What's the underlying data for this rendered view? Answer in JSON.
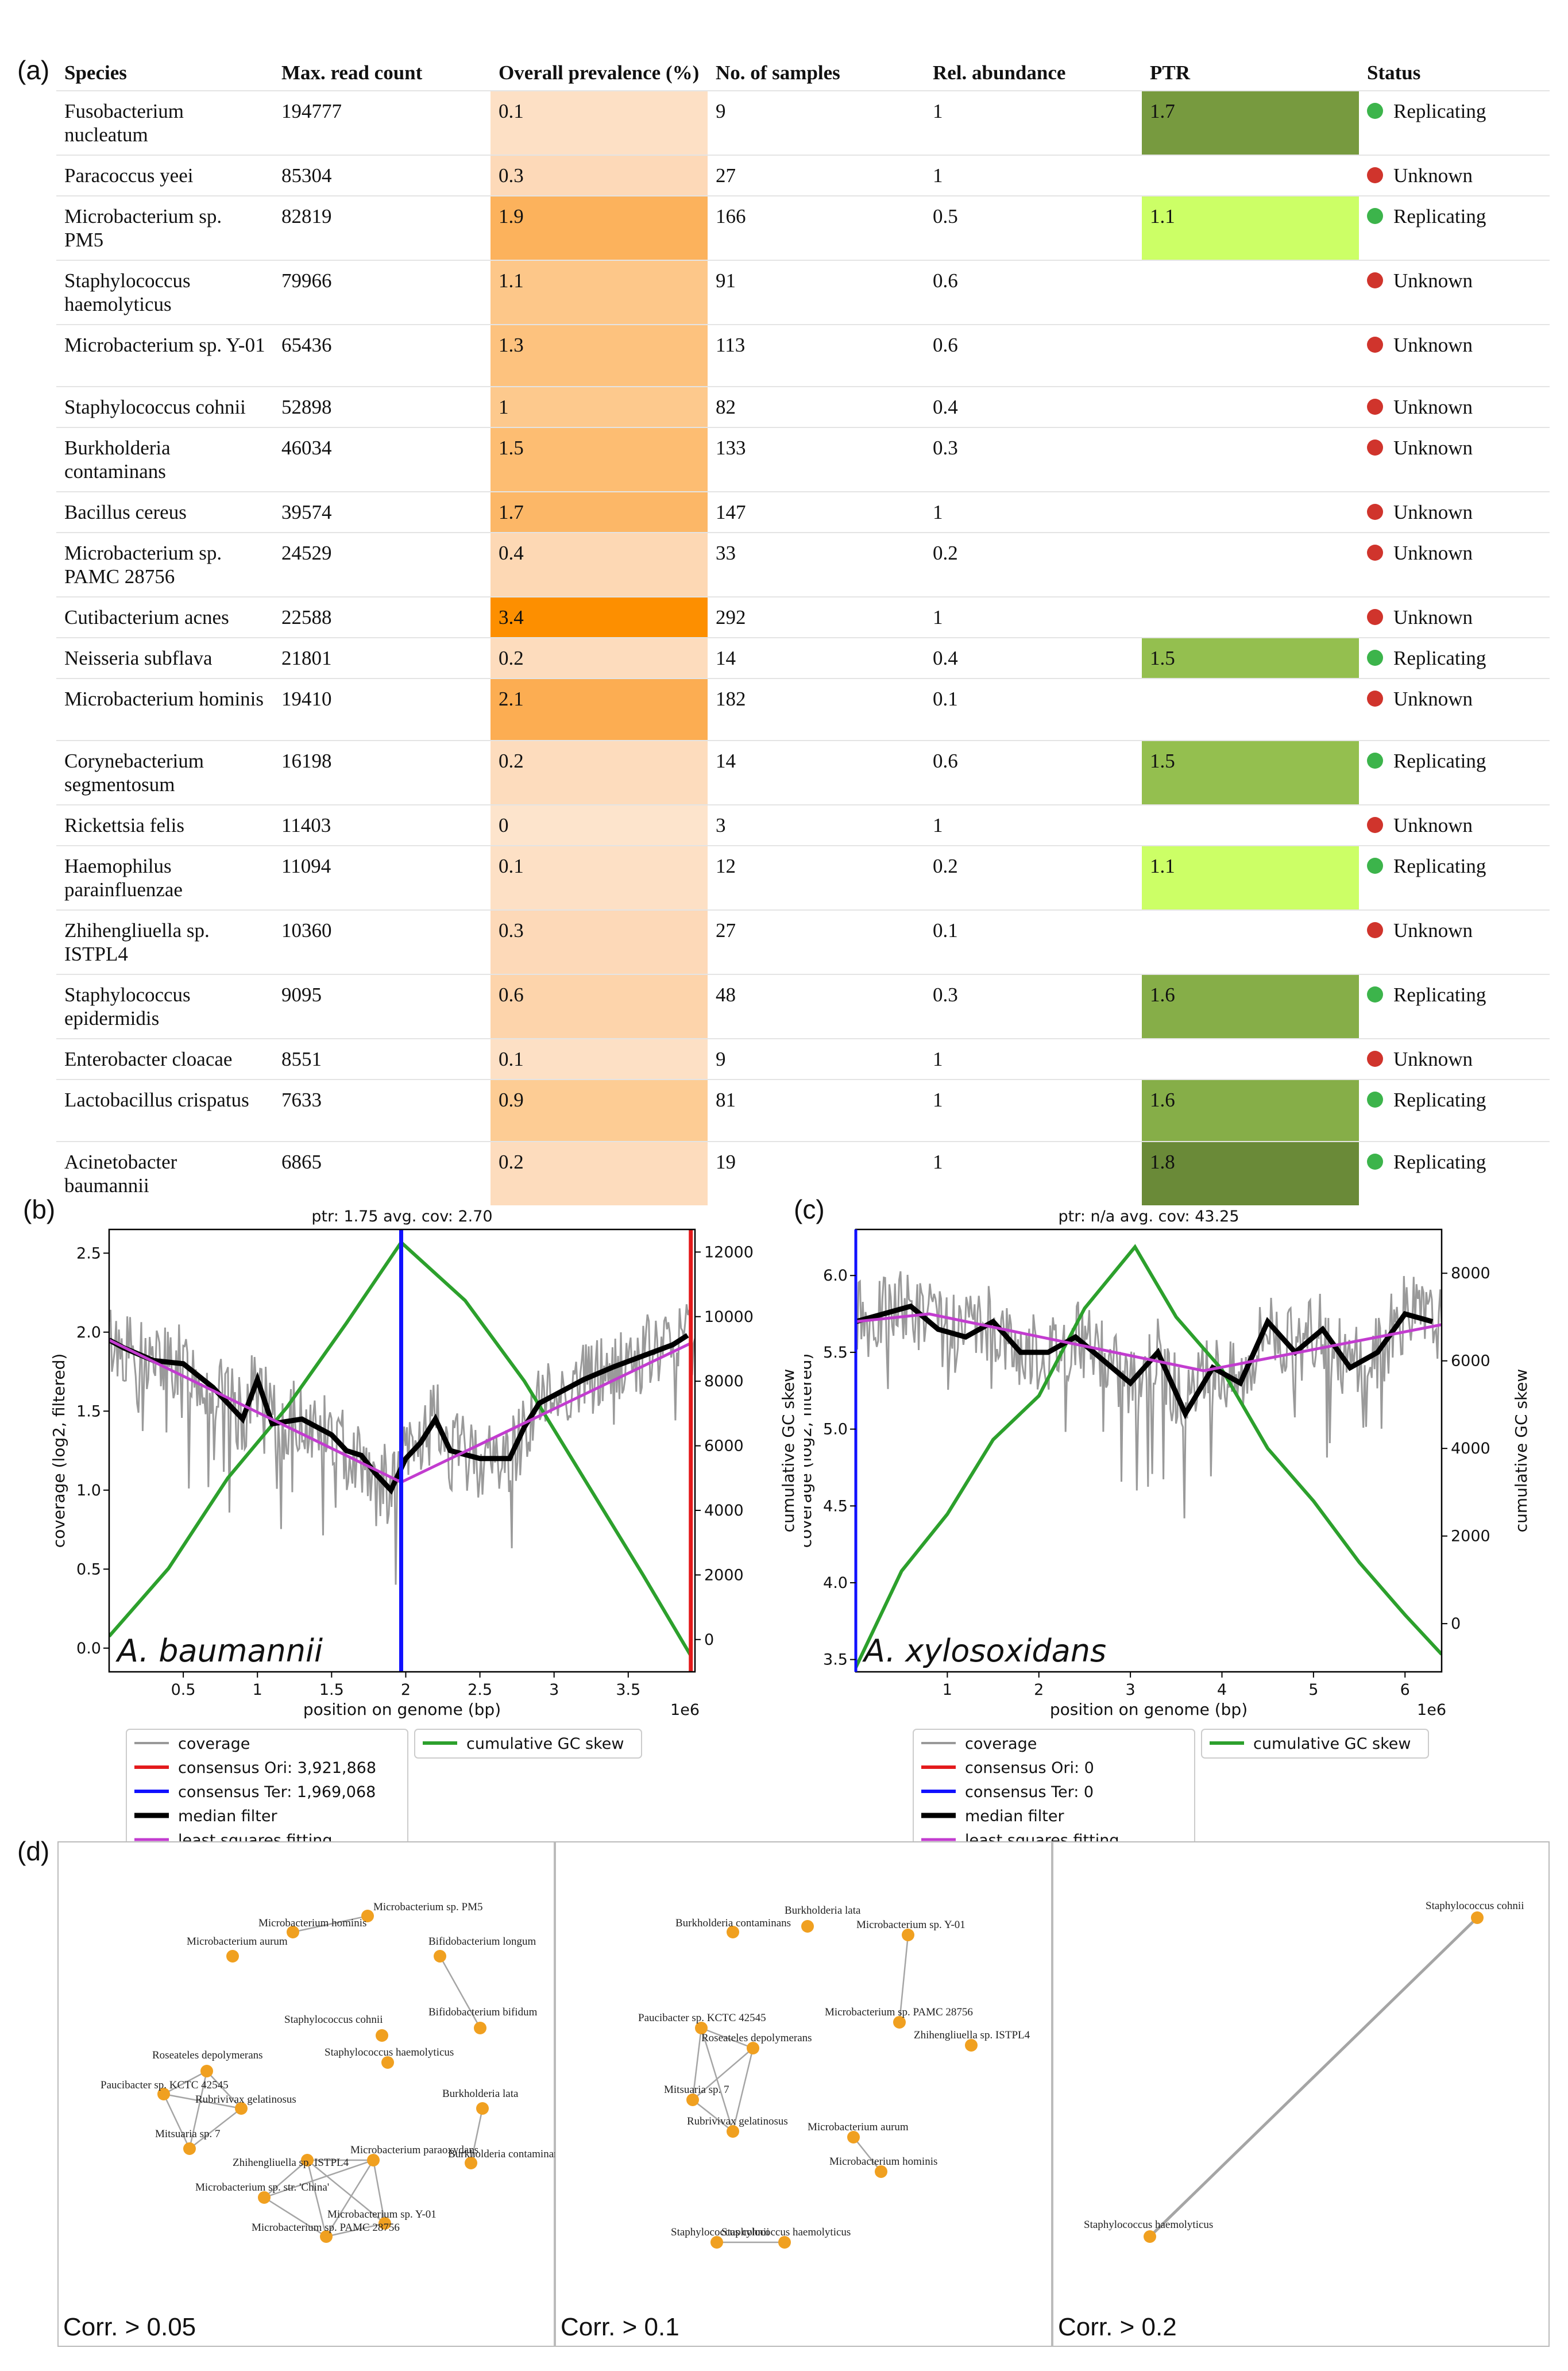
{
  "panel_labels": {
    "a": "(a)",
    "b": "(b)",
    "c": "(c)",
    "d": "(d)"
  },
  "table": {
    "headers": [
      "Species",
      "Max. read count",
      "Overall prevalence (%)",
      "No. of samples",
      "Rel. abundance",
      "PTR",
      "Status"
    ],
    "status_colors": {
      "Replicating": "#3cb44b",
      "Unknown": "#d0342c"
    },
    "rows": [
      {
        "species": "Fusobacterium nucleatum",
        "max_read_count": "194777",
        "prevalence": "0.1",
        "samples": "9",
        "rel_abundance": "1",
        "ptr": "1.7",
        "status": "Replicating",
        "prev_color": "#fde0c5",
        "ptr_color": "#779a3f"
      },
      {
        "species": "Paracoccus yeei",
        "max_read_count": "85304",
        "prevalence": "0.3",
        "samples": "27",
        "rel_abundance": "1",
        "ptr": "",
        "status": "Unknown",
        "prev_color": "#fdd9b8",
        "ptr_color": ""
      },
      {
        "species": "Microbacterium sp. PM5",
        "max_read_count": "82819",
        "prevalence": "1.9",
        "samples": "166",
        "rel_abundance": "0.5",
        "ptr": "1.1",
        "status": "Replicating",
        "prev_color": "#fcb25c",
        "ptr_color": "#ccff66"
      },
      {
        "species": "Staphylococcus haemolyticus",
        "max_read_count": "79966",
        "prevalence": "1.1",
        "samples": "91",
        "rel_abundance": "0.6",
        "ptr": "",
        "status": "Unknown",
        "prev_color": "#fdc789",
        "ptr_color": ""
      },
      {
        "species": "Microbacterium sp. Y-01",
        "max_read_count": "65436",
        "prevalence": "1.3",
        "samples": "113",
        "rel_abundance": "0.6",
        "ptr": "",
        "status": "Unknown",
        "prev_color": "#fdc27e",
        "ptr_color": ""
      },
      {
        "species": "Staphylococcus cohnii",
        "max_read_count": "52898",
        "prevalence": "1",
        "samples": "82",
        "rel_abundance": "0.4",
        "ptr": "",
        "status": "Unknown",
        "prev_color": "#fdc98d",
        "ptr_color": ""
      },
      {
        "species": "Burkholderia contaminans",
        "max_read_count": "46034",
        "prevalence": "1.5",
        "samples": "133",
        "rel_abundance": "0.3",
        "ptr": "",
        "status": "Unknown",
        "prev_color": "#fdbd72",
        "ptr_color": ""
      },
      {
        "species": "Bacillus cereus",
        "max_read_count": "39574",
        "prevalence": "1.7",
        "samples": "147",
        "rel_abundance": "1",
        "ptr": "",
        "status": "Unknown",
        "prev_color": "#fcb767",
        "ptr_color": ""
      },
      {
        "species": "Microbacterium sp. PAMC 28756",
        "max_read_count": "24529",
        "prevalence": "0.4",
        "samples": "33",
        "rel_abundance": "0.2",
        "ptr": "",
        "status": "Unknown",
        "prev_color": "#fdd8b4",
        "ptr_color": ""
      },
      {
        "species": "Cutibacterium acnes",
        "max_read_count": "22588",
        "prevalence": "3.4",
        "samples": "292",
        "rel_abundance": "1",
        "ptr": "",
        "status": "Unknown",
        "prev_color": "#fd8f00",
        "ptr_color": ""
      },
      {
        "species": "Neisseria subflava",
        "max_read_count": "21801",
        "prevalence": "0.2",
        "samples": "14",
        "rel_abundance": "0.4",
        "ptr": "1.5",
        "status": "Replicating",
        "prev_color": "#fddcbd",
        "ptr_color": "#94bf4f"
      },
      {
        "species": "Microbacterium hominis",
        "max_read_count": "19410",
        "prevalence": "2.1",
        "samples": "182",
        "rel_abundance": "0.1",
        "ptr": "",
        "status": "Unknown",
        "prev_color": "#fcad52",
        "ptr_color": ""
      },
      {
        "species": "Corynebacterium segmentosum",
        "max_read_count": "16198",
        "prevalence": "0.2",
        "samples": "14",
        "rel_abundance": "0.6",
        "ptr": "1.5",
        "status": "Replicating",
        "prev_color": "#fddcbd",
        "ptr_color": "#94bf4f"
      },
      {
        "species": "Rickettsia felis",
        "max_read_count": "11403",
        "prevalence": "0",
        "samples": "3",
        "rel_abundance": "1",
        "ptr": "",
        "status": "Unknown",
        "prev_color": "#fde4cc",
        "ptr_color": ""
      },
      {
        "species": "Haemophilus parainfluenzae",
        "max_read_count": "11094",
        "prevalence": "0.1",
        "samples": "12",
        "rel_abundance": "0.2",
        "ptr": "1.1",
        "status": "Replicating",
        "prev_color": "#fde0c5",
        "ptr_color": "#ccff66"
      },
      {
        "species": "Zhihengliuella sp. ISTPL4",
        "max_read_count": "10360",
        "prevalence": "0.3",
        "samples": "27",
        "rel_abundance": "0.1",
        "ptr": "",
        "status": "Unknown",
        "prev_color": "#fdd9b8",
        "ptr_color": ""
      },
      {
        "species": "Staphylococcus epidermidis",
        "max_read_count": "9095",
        "prevalence": "0.6",
        "samples": "48",
        "rel_abundance": "0.3",
        "ptr": "1.6",
        "status": "Replicating",
        "prev_color": "#fdd4ab",
        "ptr_color": "#86ae48"
      },
      {
        "species": "Enterobacter cloacae",
        "max_read_count": "8551",
        "prevalence": "0.1",
        "samples": "9",
        "rel_abundance": "1",
        "ptr": "",
        "status": "Unknown",
        "prev_color": "#fde0c5",
        "ptr_color": ""
      },
      {
        "species": "Lactobacillus crispatus",
        "max_read_count": "7633",
        "prevalence": "0.9",
        "samples": "81",
        "rel_abundance": "1",
        "ptr": "1.6",
        "status": "Replicating",
        "prev_color": "#fdcc94",
        "ptr_color": "#86ae48"
      },
      {
        "species": "Acinetobacter baumannii",
        "max_read_count": "6865",
        "prevalence": "0.2",
        "samples": "19",
        "rel_abundance": "1",
        "ptr": "1.8",
        "status": "Replicating",
        "prev_color": "#fddcbd",
        "ptr_color": "#6a8a38"
      }
    ]
  },
  "chart_data": [
    {
      "type": "line",
      "panel": "b",
      "title": "ptr: 1.75      avg. cov: 2.70",
      "annotation": "A. baumannii",
      "xlabel": "position on genome (bp)",
      "x_offset_label": "1e6",
      "ylabel_left": "coverage (log2, filtered)",
      "ylabel_right": "cumulative GC skew",
      "xlim": [
        0,
        3.95
      ],
      "ylim_left": [
        -0.15,
        2.65
      ],
      "ylim_right": [
        -1000,
        12700
      ],
      "xticks": [
        0.5,
        1.0,
        1.5,
        2.0,
        2.5,
        3.0,
        3.5
      ],
      "yticks_left": [
        0.0,
        0.5,
        1.0,
        1.5,
        2.0,
        2.5
      ],
      "yticks_right": [
        0,
        2000,
        4000,
        6000,
        8000,
        10000,
        12000
      ],
      "ori": 3.921868,
      "ter": 1.969068,
      "series": [
        {
          "name": "median filter",
          "x": [
            0,
            0.1,
            0.3,
            0.5,
            0.7,
            0.8,
            0.9,
            1.0,
            1.1,
            1.3,
            1.5,
            1.6,
            1.7,
            1.8,
            1.9,
            2.0,
            2.1,
            2.2,
            2.3,
            2.5,
            2.7,
            2.8,
            2.9,
            3.0,
            3.2,
            3.4,
            3.6,
            3.8,
            3.9
          ],
          "y": [
            1.95,
            1.9,
            1.82,
            1.8,
            1.65,
            1.55,
            1.45,
            1.7,
            1.42,
            1.45,
            1.35,
            1.25,
            1.22,
            1.1,
            1.0,
            1.2,
            1.3,
            1.45,
            1.25,
            1.2,
            1.2,
            1.4,
            1.55,
            1.6,
            1.7,
            1.78,
            1.85,
            1.92,
            1.98
          ]
        },
        {
          "name": "least squares fitting",
          "x": [
            0,
            1.969,
            3.922
          ],
          "y": [
            1.95,
            1.05,
            1.93
          ]
        },
        {
          "name": "cumulative GC skew",
          "x": [
            0,
            0.4,
            0.8,
            1.2,
            1.6,
            1.969,
            2.4,
            2.8,
            3.2,
            3.6,
            3.922
          ],
          "y": [
            100,
            2200,
            5000,
            7200,
            9800,
            12300,
            10500,
            8000,
            5000,
            2000,
            -500
          ]
        }
      ]
    },
    {
      "type": "line",
      "panel": "c",
      "title": "ptr: n/a      avg. cov: 43.25",
      "annotation": "A. xylosoxidans",
      "xlabel": "position on genome (bp)",
      "x_offset_label": "1e6",
      "ylabel_left": "coverage (log2, filtered)",
      "ylabel_right": "cumulative GC skew",
      "xlim": [
        0,
        6.4
      ],
      "ylim_left": [
        3.42,
        6.3
      ],
      "ylim_right": [
        -1100,
        9000
      ],
      "xticks": [
        1,
        2,
        3,
        4,
        5,
        6
      ],
      "yticks_left": [
        3.5,
        4.0,
        4.5,
        5.0,
        5.5,
        6.0
      ],
      "yticks_right": [
        0,
        2000,
        4000,
        6000,
        8000
      ],
      "ori": 0,
      "ter": 0,
      "series": [
        {
          "name": "median filter",
          "x": [
            0,
            0.3,
            0.6,
            0.9,
            1.2,
            1.5,
            1.8,
            2.1,
            2.4,
            2.7,
            3.0,
            3.3,
            3.6,
            3.9,
            4.2,
            4.5,
            4.8,
            5.1,
            5.4,
            5.7,
            6.0,
            6.3
          ],
          "y": [
            5.7,
            5.75,
            5.8,
            5.65,
            5.6,
            5.7,
            5.5,
            5.5,
            5.6,
            5.45,
            5.3,
            5.5,
            5.1,
            5.4,
            5.3,
            5.7,
            5.5,
            5.65,
            5.4,
            5.5,
            5.75,
            5.7
          ]
        },
        {
          "name": "least squares fitting",
          "x": [
            0,
            0.8,
            3.8,
            6.4
          ],
          "y": [
            5.7,
            5.75,
            5.38,
            5.68
          ]
        },
        {
          "name": "cumulative GC skew",
          "x": [
            0,
            0.5,
            1.0,
            1.5,
            2.0,
            2.5,
            3.05,
            3.5,
            4.0,
            4.5,
            5.0,
            5.5,
            6.0,
            6.4
          ],
          "y": [
            -1000,
            1200,
            2500,
            4200,
            5200,
            7200,
            8600,
            7000,
            5800,
            4000,
            2800,
            1400,
            200,
            -700
          ]
        }
      ]
    }
  ],
  "legends": {
    "items_left": [
      {
        "label": "coverage",
        "color": "#999999"
      },
      {
        "label": "consensus Ori: 3,921,868",
        "color": "#e31a1c"
      },
      {
        "label": "consensus Ter: 1,969,068",
        "color": "#1010ff"
      },
      {
        "label": "median filter",
        "color": "#000000"
      },
      {
        "label": "least squares fitting",
        "color": "#c23ccf"
      }
    ],
    "items_right": [
      {
        "label": "coverage",
        "color": "#999999"
      },
      {
        "label": "consensus Ori: 0",
        "color": "#e31a1c"
      },
      {
        "label": "consensus Ter: 0",
        "color": "#1010ff"
      },
      {
        "label": "median filter",
        "color": "#000000"
      },
      {
        "label": "least squares fitting",
        "color": "#c23ccf"
      }
    ],
    "gc_label": "cumulative GC skew",
    "gc_color": "#2ca02c"
  },
  "networks": [
    {
      "caption": "Corr. > 0.05",
      "nodes": [
        {
          "label": "Microbacterium sp. PM5"
        },
        {
          "label": "Microbacterium hominis"
        },
        {
          "label": "Microbacterium aurum"
        },
        {
          "label": "Bifidobacterium longum"
        },
        {
          "label": "Bifidobacterium bifidum"
        },
        {
          "label": "Staphylococcus cohnii"
        },
        {
          "label": "Staphylococcus haemolyticus"
        },
        {
          "label": "Roseateles depolymerans"
        },
        {
          "label": "Paucibacter sp. KCTC 42545"
        },
        {
          "label": "Rubrivivax gelatinosus"
        },
        {
          "label": "Mitsuaria sp. 7"
        },
        {
          "label": "Burkholderia lata"
        },
        {
          "label": "Burkholderia contaminans"
        },
        {
          "label": "Microbacterium paraoxydans"
        },
        {
          "label": "Zhihengliuella sp. ISTPL4"
        },
        {
          "label": "Microbacterium sp. str. 'China'"
        },
        {
          "label": "Microbacterium sp. Y-01"
        },
        {
          "label": "Microbacterium sp. PAMC 28756"
        }
      ]
    },
    {
      "caption": "Corr. > 0.1",
      "nodes": [
        {
          "label": "Burkholderia lata"
        },
        {
          "label": "Burkholderia contaminans"
        },
        {
          "label": "Microbacterium sp. Y-01"
        },
        {
          "label": "Microbacterium sp. PAMC 28756"
        },
        {
          "label": "Zhihengliuella sp. ISTPL4"
        },
        {
          "label": "Paucibacter sp. KCTC 42545"
        },
        {
          "label": "Roseateles depolymerans"
        },
        {
          "label": "Mitsuaria sp. 7"
        },
        {
          "label": "Rubrivivax gelatinosus"
        },
        {
          "label": "Microbacterium aurum"
        },
        {
          "label": "Microbacterium hominis"
        },
        {
          "label": "Staphylococcus cohnii"
        },
        {
          "label": "Staphylococcus haemolyticus"
        }
      ]
    },
    {
      "caption": "Corr. > 0.2",
      "nodes": [
        {
          "label": "Staphylococcus cohnii"
        },
        {
          "label": "Staphylococcus haemolyticus"
        }
      ]
    }
  ]
}
